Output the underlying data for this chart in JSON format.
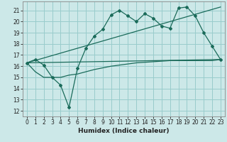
{
  "xlabel": "Humidex (Indice chaleur)",
  "bg_color": "#cce8e8",
  "grid_color": "#99cccc",
  "line_color": "#1a6b5a",
  "xlim": [
    -0.5,
    23.5
  ],
  "ylim": [
    11.5,
    21.8
  ],
  "yticks": [
    12,
    13,
    14,
    15,
    16,
    17,
    18,
    19,
    20,
    21
  ],
  "xticks": [
    0,
    1,
    2,
    3,
    4,
    5,
    6,
    7,
    8,
    9,
    10,
    11,
    12,
    13,
    14,
    15,
    16,
    17,
    18,
    19,
    20,
    21,
    22,
    23
  ],
  "line1_x": [
    0,
    1,
    2,
    3,
    4,
    5,
    6,
    7,
    8,
    9,
    10,
    11,
    12,
    13,
    14,
    15,
    16,
    17,
    18,
    19,
    20,
    21,
    22,
    23
  ],
  "line1_y": [
    16.3,
    16.6,
    16.1,
    15.0,
    14.3,
    12.3,
    15.8,
    17.6,
    18.7,
    19.3,
    20.6,
    21.0,
    20.5,
    20.0,
    20.7,
    20.3,
    19.6,
    19.4,
    21.2,
    21.3,
    20.5,
    19.0,
    17.8,
    16.6
  ],
  "line2_x": [
    0,
    23
  ],
  "line2_y": [
    16.3,
    21.3
  ],
  "line3_x": [
    0,
    23
  ],
  "line3_y": [
    16.3,
    16.6
  ],
  "line4_x": [
    0,
    1,
    2,
    3,
    4,
    5,
    6,
    7,
    8,
    9,
    10,
    11,
    12,
    13,
    14,
    15,
    16,
    17,
    18,
    19,
    20,
    21,
    22,
    23
  ],
  "line4_y": [
    16.3,
    15.5,
    15.0,
    15.0,
    15.0,
    15.2,
    15.3,
    15.5,
    15.7,
    15.85,
    16.0,
    16.1,
    16.2,
    16.3,
    16.35,
    16.4,
    16.45,
    16.5,
    16.5,
    16.5,
    16.5,
    16.5,
    16.5,
    16.6
  ],
  "tick_fontsize": 5.5,
  "xlabel_fontsize": 6.5
}
